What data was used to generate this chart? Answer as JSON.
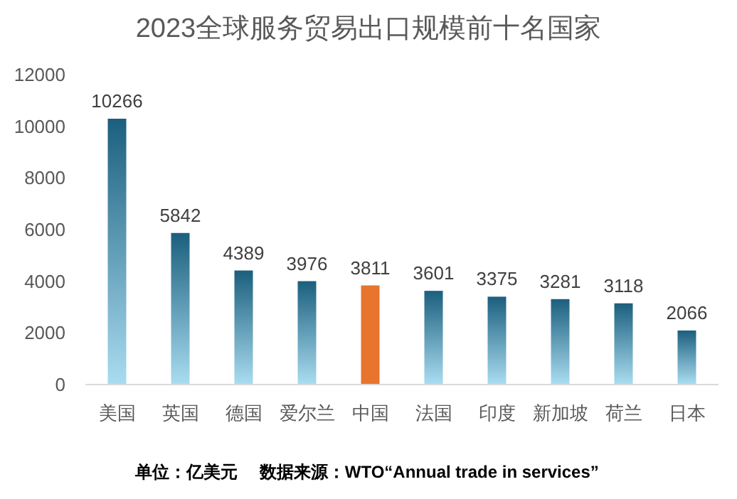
{
  "chart_data": {
    "type": "bar",
    "title": "2023全球服务贸易出口规模前十名国家",
    "categories": [
      "美国",
      "英国",
      "德国",
      "爱尔兰",
      "中国",
      "法国",
      "印度",
      "新加坡",
      "荷兰",
      "日本"
    ],
    "values": [
      10266,
      5842,
      4389,
      3976,
      3811,
      3601,
      3375,
      3281,
      3118,
      2066
    ],
    "colors": [
      "#1b5f7e",
      "#1b5f7e",
      "#1b5f7e",
      "#1b5f7e",
      "#e8742e",
      "#1b5f7e",
      "#1b5f7e",
      "#1b5f7e",
      "#1b5f7e",
      "#1b5f7e"
    ],
    "ylim": [
      0,
      12000
    ],
    "yticks": [
      0,
      2000,
      4000,
      6000,
      8000,
      10000,
      12000
    ],
    "data_labels": true,
    "grid": false,
    "annotations": [
      "单位：亿美元　 数据来源：WTO“Annual trade in services”"
    ]
  }
}
